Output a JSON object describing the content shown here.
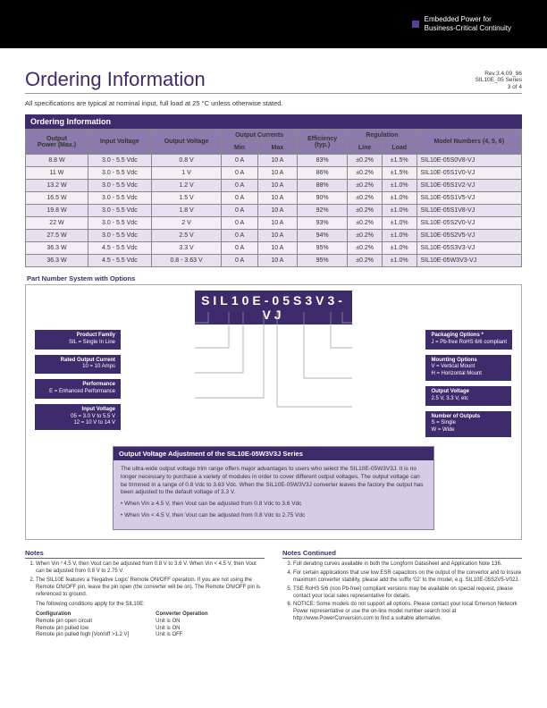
{
  "header_tag": "Embedded Power for\nBusiness-Critical Continuity",
  "page_title": "Ordering Information",
  "rev": {
    "l1": "Rev.3.4.09_96",
    "l2": "SIL10E_05 Series",
    "l3": "3 of 4"
  },
  "spec_note": "All specifications are typical at nominal input, full load at 25 °C unless otherwise stated.",
  "table": {
    "title": "Ordering Information",
    "headers": {
      "power": "Output\nPower (Max.)",
      "vin": "Input Voltage",
      "vout": "Output Voltage",
      "ioutg": "Output Currents",
      "min": "Min",
      "max": "Max",
      "eff": "Efficiency\n(typ.)",
      "regg": "Regulation",
      "line": "Line",
      "load": "Load",
      "model": "Model Numbers (4, 5, 6)"
    },
    "rows": [
      [
        "8.8 W",
        "3.0 - 5.5 Vdc",
        "0.8 V",
        "0 A",
        "10 A",
        "83%",
        "±0.2%",
        "±1.5%",
        "SIL10E-05S0V8-VJ"
      ],
      [
        "11 W",
        "3.0 - 5.5 Vdc",
        "1 V",
        "0 A",
        "10 A",
        "86%",
        "±0.2%",
        "±1.5%",
        "SIL10E-05S1V0-VJ"
      ],
      [
        "13.2 W",
        "3.0 - 5.5 Vdc",
        "1.2 V",
        "0 A",
        "10 A",
        "88%",
        "±0.2%",
        "±1.0%",
        "SIL10E-05S1V2-VJ"
      ],
      [
        "16.5 W",
        "3.0 - 5.5 Vdc",
        "1.5 V",
        "0 A",
        "10 A",
        "90%",
        "±0.2%",
        "±1.0%",
        "SIL10E-05S1V5-VJ"
      ],
      [
        "19.8 W",
        "3.0 - 5.5 Vdc",
        "1.8 V",
        "0 A",
        "10 A",
        "92%",
        "±0.2%",
        "±1.0%",
        "SIL10E-05S1V8-VJ"
      ],
      [
        "22 W",
        "3.0 - 5.5 Vdc",
        "2 V",
        "0 A",
        "10 A",
        "93%",
        "±0.2%",
        "±1.0%",
        "SIL10E-05S2V0-VJ"
      ],
      [
        "27.5 W",
        "3.0 - 5.5 Vdc",
        "2.5 V",
        "0 A",
        "10 A",
        "94%",
        "±0.2%",
        "±1.0%",
        "SIL10E-05S2V5-VJ"
      ],
      [
        "36.3 W",
        "4.5 - 5.5 Vdc",
        "3.3 V",
        "0 A",
        "10 A",
        "95%",
        "±0.2%",
        "±1.0%",
        "SIL10E-05S3V3-VJ"
      ],
      [
        "36.3 W",
        "4.5 - 5.5 Vdc",
        "0.8 - 3.63 V",
        "0 A",
        "10 A",
        "95%",
        "±0.2%",
        "±1.0%",
        "SIL10E-05W3V3-VJ"
      ]
    ]
  },
  "partnum": {
    "label": "Part Number System with Options",
    "code": "SIL10E-05S3V3-VJ",
    "left": [
      {
        "t": "Product Family",
        "b": "SIL = Single In Line"
      },
      {
        "t": "Rated Output Current",
        "b": "10 = 10 Amps"
      },
      {
        "t": "Performance",
        "b": "E = Enhanced Performance"
      },
      {
        "t": "Input Voltage",
        "b": "05 = 3.0 V to 5.5 V\n12 = 10 V to 14 V"
      }
    ],
    "right": [
      {
        "t": "Packaging Options *",
        "b": "J = Pb-free RoHS 6/6 compliant"
      },
      {
        "t": "Mounting Options",
        "b": "V = Vertical Mount\nH = Horizontal Mount"
      },
      {
        "t": "Output Voltage",
        "b": "2.5 V, 3.3 V, etc"
      },
      {
        "t": "Number of Outputs",
        "b": "S = Single\nW = Wide"
      }
    ]
  },
  "adj": {
    "title": "Output Voltage Adjustment of the SIL10E-05W3V3J Series",
    "p1": "The ultra-wide output voltage trim range offers major advantages to users who select the SIL10E-05W3V3J. It is no longer necessary to purchase a variety of modules in order to cover different output voltages. The output voltage can be trimmed in a range of 0.8 Vdc to 3.63 Vdc. When the SIL10E-05W3V3J converter leaves the factory the output has been adjusted to the default voltage of 3.3 V.",
    "b1": "• When Vin ≥ 4.5 V, then Vout can be adjusted from 0.8 Vdc to 3.6 Vdc",
    "b2": "• When Vin < 4.5 V, then Vout can be adjusted from 0.8 Vdc to 2.75 Vdc"
  },
  "notes": {
    "h1": "Notes",
    "h2": "Notes Continued",
    "l": [
      "When Vin ³ 4.5 V, then Vout can be adjusted from 0.8 V to 3.6 V. When Vin < 4.5 V, then Vout can be adjusted from 0.8 V to 2.75 V.",
      "The SIL10E features a ‘Negative Logic’ Remote ON/OFF operation. If you are not using the Remote ON/OFF pin, leave the pin open (the converter will be on). The Remote ON/OFF pin is referenced to ground."
    ],
    "cond_h": "The following conditions apply for the SIL10E:",
    "conf_h": "Configuration",
    "conf": "Remote pin open circuit\nRemote pin pulled low\nRemote pin pulled high [Von/off >1.2 V]",
    "op_h": "Converter Operation",
    "op": "Unit is ON\nUnit is ON\nUnit is OFF",
    "r": [
      "Full derating curves available in both the Longform Datasheet and Application Note 136.",
      "For certain applications that use low ESR capacitors on the output of the convertor and to insure maximum converter stability, please add the suffix ‘02’ to the model, e.g. SIL10E-05S2V5-V02J.",
      "TSE RoHS 5/6 (non Pb-free) compliant versions may be available on special request, please contact your local sales representative for details.",
      "NOTICE: Some models do not support all options. Please contact your local Emerson Network Power representative or use the on-line model number search tool at http://www.PowerConversion.com to find a suitable alternative."
    ]
  }
}
